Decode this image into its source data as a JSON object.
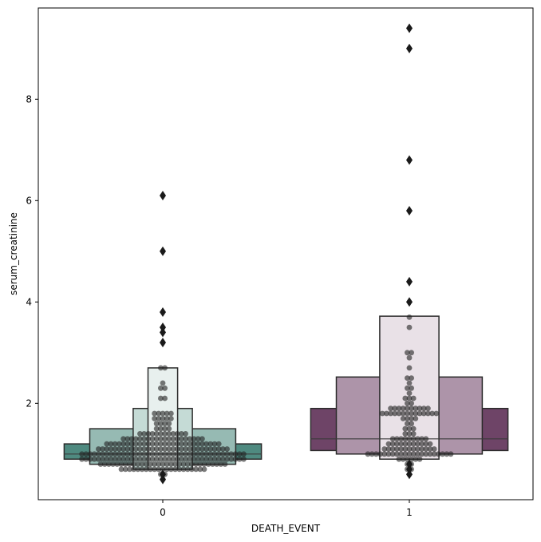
{
  "chart_data": {
    "type": "boxen",
    "xlabel": "DEATH_EVENT",
    "ylabel": "serum_creatinine",
    "categories": [
      "0",
      "1"
    ],
    "ylim": [
      0.1,
      9.8
    ],
    "yticks": [
      2,
      4,
      6,
      8
    ],
    "grid": false,
    "legend": "none",
    "groups": [
      {
        "category": "0",
        "median": 1.0,
        "letter_values": [
          {
            "low": 0.9,
            "high": 1.2,
            "color": "#4f8a80"
          },
          {
            "low": 0.8,
            "high": 1.5,
            "color": "#96bab3"
          },
          {
            "low": 0.7,
            "high": 1.9,
            "color": "#c5dbd6"
          },
          {
            "low": 0.7,
            "high": 2.7,
            "color": "#e8f0ee"
          }
        ],
        "outliers": [
          6.1,
          5.0,
          3.8,
          3.5,
          3.4,
          3.2,
          0.6,
          0.5
        ],
        "swarm_values": [
          0.5,
          0.6,
          0.6,
          0.7,
          0.7,
          0.7,
          0.7,
          0.7,
          0.7,
          0.7,
          0.7,
          0.7,
          0.7,
          0.7,
          0.7,
          0.7,
          0.7,
          0.7,
          0.7,
          0.7,
          0.7,
          0.7,
          0.7,
          0.7,
          0.8,
          0.8,
          0.8,
          0.8,
          0.8,
          0.8,
          0.8,
          0.8,
          0.8,
          0.8,
          0.8,
          0.8,
          0.8,
          0.8,
          0.8,
          0.8,
          0.8,
          0.8,
          0.8,
          0.8,
          0.8,
          0.8,
          0.8,
          0.8,
          0.8,
          0.8,
          0.8,
          0.8,
          0.8,
          0.8,
          0.8,
          0.9,
          0.9,
          0.9,
          0.9,
          0.9,
          0.9,
          0.9,
          0.9,
          0.9,
          0.9,
          0.9,
          0.9,
          0.9,
          0.9,
          0.9,
          0.9,
          0.9,
          0.9,
          0.9,
          0.9,
          0.9,
          0.9,
          0.9,
          0.9,
          0.9,
          0.9,
          0.9,
          0.9,
          0.9,
          0.9,
          0.9,
          0.9,
          0.9,
          0.9,
          0.9,
          0.9,
          0.9,
          0.9,
          0.9,
          0.9,
          1.0,
          1.0,
          1.0,
          1.0,
          1.0,
          1.0,
          1.0,
          1.0,
          1.0,
          1.0,
          1.0,
          1.0,
          1.0,
          1.0,
          1.0,
          1.0,
          1.0,
          1.0,
          1.0,
          1.0,
          1.0,
          1.0,
          1.0,
          1.0,
          1.0,
          1.0,
          1.0,
          1.0,
          1.0,
          1.0,
          1.0,
          1.0,
          1.0,
          1.0,
          1.0,
          1.0,
          1.0,
          1.0,
          1.0,
          1.0,
          1.1,
          1.1,
          1.1,
          1.1,
          1.1,
          1.1,
          1.1,
          1.1,
          1.1,
          1.1,
          1.1,
          1.1,
          1.1,
          1.1,
          1.1,
          1.1,
          1.1,
          1.1,
          1.1,
          1.1,
          1.1,
          1.1,
          1.1,
          1.1,
          1.1,
          1.1,
          1.1,
          1.1,
          1.1,
          1.1,
          1.1,
          1.1,
          1.2,
          1.2,
          1.2,
          1.2,
          1.2,
          1.2,
          1.2,
          1.2,
          1.2,
          1.2,
          1.2,
          1.2,
          1.2,
          1.2,
          1.2,
          1.2,
          1.2,
          1.2,
          1.2,
          1.2,
          1.2,
          1.2,
          1.2,
          1.2,
          1.2,
          1.2,
          1.2,
          1.2,
          1.3,
          1.3,
          1.3,
          1.3,
          1.3,
          1.3,
          1.3,
          1.3,
          1.3,
          1.3,
          1.3,
          1.3,
          1.3,
          1.3,
          1.3,
          1.3,
          1.3,
          1.3,
          1.3,
          1.3,
          1.4,
          1.4,
          1.4,
          1.4,
          1.4,
          1.4,
          1.4,
          1.4,
          1.4,
          1.4,
          1.4,
          1.4,
          1.5,
          1.5,
          1.5,
          1.5,
          1.6,
          1.6,
          1.6,
          1.6,
          1.7,
          1.7,
          1.7,
          1.7,
          1.7,
          1.8,
          1.8,
          1.8,
          1.8,
          1.8,
          2.1,
          2.1,
          2.3,
          2.3,
          2.4,
          2.7,
          2.7
        ]
      },
      {
        "category": "1",
        "median": 1.3,
        "letter_values": [
          {
            "low": 1.07,
            "high": 1.9,
            "color": "#6e4467"
          },
          {
            "low": 1.0,
            "high": 2.52,
            "color": "#ad94a9"
          },
          {
            "low": 0.9,
            "high": 3.72,
            "color": "#e9e1e7"
          }
        ],
        "outliers": [
          9.4,
          9.0,
          6.8,
          5.8,
          4.4,
          4.0,
          0.8,
          0.7,
          0.6
        ],
        "swarm_values": [
          0.6,
          0.7,
          0.7,
          0.8,
          0.8,
          0.9,
          0.9,
          0.9,
          0.9,
          0.9,
          0.9,
          1.0,
          1.0,
          1.0,
          1.0,
          1.0,
          1.0,
          1.0,
          1.0,
          1.0,
          1.0,
          1.0,
          1.0,
          1.0,
          1.0,
          1.0,
          1.0,
          1.0,
          1.0,
          1.0,
          1.0,
          1.0,
          1.1,
          1.1,
          1.1,
          1.1,
          1.1,
          1.1,
          1.1,
          1.1,
          1.1,
          1.1,
          1.1,
          1.1,
          1.1,
          1.2,
          1.2,
          1.2,
          1.2,
          1.2,
          1.2,
          1.2,
          1.2,
          1.2,
          1.2,
          1.2,
          1.3,
          1.3,
          1.3,
          1.3,
          1.3,
          1.3,
          1.3,
          1.3,
          1.3,
          1.4,
          1.4,
          1.4,
          1.5,
          1.5,
          1.5,
          1.6,
          1.6,
          1.7,
          1.7,
          1.7,
          1.7,
          1.8,
          1.8,
          1.8,
          1.8,
          1.8,
          1.8,
          1.8,
          1.8,
          1.8,
          1.8,
          1.8,
          1.8,
          1.8,
          1.8,
          1.9,
          1.9,
          1.9,
          1.9,
          1.9,
          1.9,
          1.9,
          1.9,
          1.9,
          1.9,
          2.0,
          2.0,
          2.1,
          2.1,
          2.1,
          2.2,
          2.3,
          2.3,
          2.4,
          2.5,
          2.5,
          2.7,
          2.9,
          3.0,
          3.0,
          3.5,
          3.7
        ]
      }
    ],
    "colors": {
      "swarm_point": "#222222",
      "outlier": "#1a1a1a",
      "edge": "#2b2b2b",
      "axes": "#000000"
    }
  }
}
